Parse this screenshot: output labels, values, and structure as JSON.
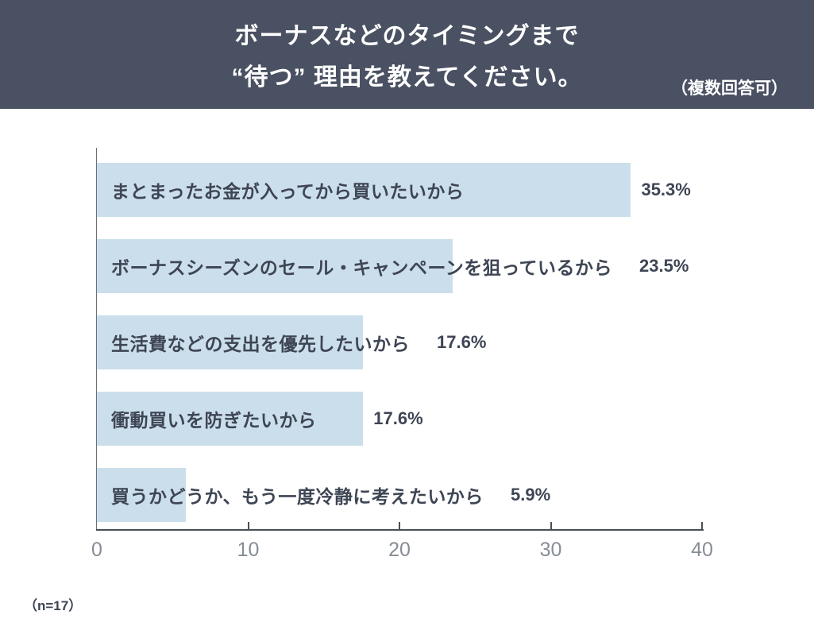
{
  "header": {
    "title_line1": "ボーナスなどのタイミングまで",
    "title_line2": "“待つ” 理由を教えてください。",
    "note": "（複数回答可）",
    "bg_color": "#4A5162",
    "text_color": "#FFFFFF"
  },
  "chart_data": {
    "type": "bar",
    "orientation": "horizontal",
    "categories": [
      "まとまったお金が入ってから買いたいから",
      "ボーナスシーズンのセール・キャンペーンを狙っているから",
      "生活費などの支出を優先したいから",
      "衝動買いを防ぎたいから",
      "買うかどうか、もう一度冷静に考えたいから"
    ],
    "values": [
      35.3,
      23.5,
      17.6,
      17.6,
      5.9
    ],
    "value_suffix": "%",
    "value_labels": [
      "35.3%",
      "23.5%",
      "17.6%",
      "17.6%",
      "5.9%"
    ],
    "xlim": [
      0,
      40
    ],
    "x_ticks": [
      0,
      10,
      20,
      30,
      40
    ],
    "grid": false,
    "legend": false,
    "bar_color": "#CBDEEB",
    "label_color": "#3E4554",
    "tick_label_color": "#878D95",
    "axis_color": "#4A4F57"
  },
  "footer": {
    "n_label": "（n=17）"
  }
}
